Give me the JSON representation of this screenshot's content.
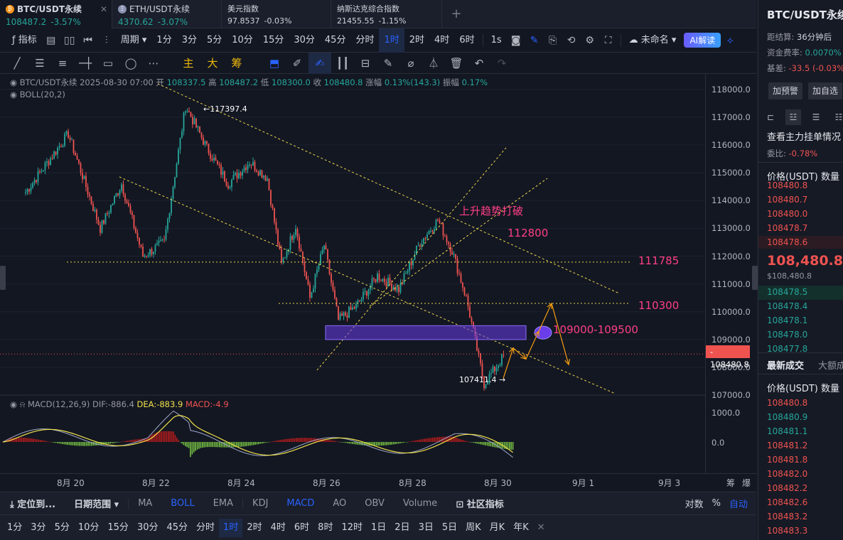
{
  "tabs": [
    {
      "name": "BTC/USDT永续",
      "price": "108487.2",
      "change": "-3.57%",
      "coin": "₿"
    },
    {
      "name": "ETH/USDT永续",
      "price": "4370.62",
      "change": "-3.07%",
      "coin": "Ξ"
    },
    {
      "name": "美元指数",
      "price": "97.8537",
      "change": "-0.03%"
    },
    {
      "name": "纳斯达克综合指数",
      "price": "21455.55",
      "change": "-1.15%"
    }
  ],
  "toolbar": {
    "indicator": "指标",
    "period": "周期",
    "intervals": [
      "1分",
      "3分",
      "5分",
      "10分",
      "15分",
      "30分",
      "45分",
      "分时",
      "1时",
      "2时",
      "4时",
      "6时"
    ],
    "active_interval": "1时",
    "seconds": "1s",
    "layout_name": "未命名",
    "ai": "AI解读"
  },
  "draw_toolbar": {
    "labels_cn": [
      "主",
      "大",
      "筹"
    ]
  },
  "legend": {
    "symbol": "BTC/USDT永续",
    "datetime": "2025-08-30 07:00",
    "open_label": "开",
    "open": "108337.5",
    "high_label": "高",
    "high": "108487.2",
    "low_label": "低",
    "low": "108300.0",
    "close_label": "收",
    "close": "108480.8",
    "change_label": "涨幅",
    "change": "0.13%(143.3)",
    "amp_label": "振幅",
    "amp": "0.17%",
    "boll": "BOLL(20,2)"
  },
  "macd_legend": {
    "name": "MACD(12,26,9)",
    "dif": "DIF:-886.4",
    "dea": "DEA:-883.9",
    "macd": "MACD:-4.9"
  },
  "annotations": {
    "breakdown": "上升趋势打破",
    "level_112800": "112800",
    "level_111785": "111785",
    "level_110300": "110300",
    "zone": "109000-109500",
    "high_marker": "←117397.4",
    "low_marker": "107411.4 →"
  },
  "price_axis": {
    "ticks": [
      "118000.0",
      "117000.0",
      "116000.0",
      "115000.0",
      "114000.0",
      "113000.0",
      "112000.0",
      "111000.0",
      "110000.0",
      "109000.0",
      "108000.0",
      "107000.0"
    ],
    "macd_ticks": [
      "1000.0",
      "0.0"
    ],
    "current_price": "108480.8",
    "current_price_marker": "-"
  },
  "date_axis": {
    "ticks": [
      "8月 20",
      "8月 22",
      "8月 24",
      "8月 26",
      "8月 28",
      "8月 30",
      "9月 1",
      "9月 3"
    ],
    "extra": [
      "筹",
      "爆"
    ]
  },
  "bottom_bar": {
    "locate": "定位到...",
    "date_range": "日期范围",
    "indicators": [
      "MA",
      "BOLL",
      "EMA",
      "KDJ",
      "MACD",
      "AO",
      "OBV",
      "Volume"
    ],
    "active_main": "BOLL",
    "active_sub": "MACD",
    "community": "社区指标",
    "log": "对数",
    "pct": "%",
    "auto": "自动"
  },
  "interval_bar": [
    "1分",
    "3分",
    "5分",
    "10分",
    "15分",
    "30分",
    "45分",
    "分时",
    "1时",
    "2时",
    "4时",
    "6时",
    "8时",
    "12时",
    "1日",
    "2日",
    "3日",
    "5日",
    "周K",
    "月K",
    "年K"
  ],
  "right_panel": {
    "title": "BTC/USDT永续",
    "settle_label": "距结算:",
    "settle": "36分钟后",
    "funding_label": "资金费率:",
    "funding": "0.0070%",
    "basis_label": "基差:",
    "basis": "-33.5 (-0.03%)",
    "alert_btn": "加预警",
    "watch_btn": "加自选",
    "orderbook_title": "查看主力挂单情况",
    "ratio_label": "委比:",
    "ratio": "-0.78%",
    "col_price": "价格(USDT)",
    "col_qty": "数量",
    "asks": [
      "108480.8",
      "108480.7",
      "108480.0",
      "108478.7",
      "108478.6"
    ],
    "mid_price": "108,480.8",
    "mid_sub": "$108,480.8",
    "bids": [
      "108478.5",
      "108478.4",
      "108478.1",
      "108478.0",
      "108477.8"
    ],
    "trades_title": "最新成交",
    "big_title": "大额成交",
    "trades": [
      {
        "p": "108480.8",
        "side": "sell"
      },
      {
        "p": "108480.9",
        "side": "buy"
      },
      {
        "p": "108481.1",
        "side": "buy"
      },
      {
        "p": "108481.2",
        "side": "sell"
      },
      {
        "p": "108481.8",
        "side": "sell"
      },
      {
        "p": "108482.0",
        "side": "sell"
      },
      {
        "p": "108482.2",
        "side": "sell"
      },
      {
        "p": "108482.6",
        "side": "sell"
      },
      {
        "p": "108483.2",
        "side": "sell"
      },
      {
        "p": "108483.3",
        "side": "sell"
      }
    ]
  },
  "colors": {
    "up": "#26a69a",
    "down": "#ef5350",
    "accent": "#2962ff",
    "annotation": "#ff3f86",
    "trendline": "#e8d44d",
    "zone": "#6a3de8",
    "arrow": "#f39c12"
  },
  "chart_data": {
    "type": "candlestick",
    "interval": "1h",
    "y_range": [
      106800,
      118300
    ],
    "key_points": [
      {
        "date": "8月 19",
        "price": 114300
      },
      {
        "date": "8月 20",
        "price": 116400
      },
      {
        "date": "8月 21",
        "price": 113000
      },
      {
        "date": "8月 21",
        "price": 114600
      },
      {
        "date": "8月 22",
        "price": 112000
      },
      {
        "date": "8月 22",
        "price": 112500
      },
      {
        "date": "8月 23",
        "price": 117397.4
      },
      {
        "date": "8月 23",
        "price": 115900
      },
      {
        "date": "8月 24",
        "price": 114600
      },
      {
        "date": "8月 24",
        "price": 115400
      },
      {
        "date": "8月 25",
        "price": 114800
      },
      {
        "date": "8月 25",
        "price": 111700
      },
      {
        "date": "8月 25",
        "price": 113100
      },
      {
        "date": "8月 26",
        "price": 110500
      },
      {
        "date": "8月 26",
        "price": 112400
      },
      {
        "date": "8月 26",
        "price": 109700
      },
      {
        "date": "8月 27",
        "price": 110200
      },
      {
        "date": "8月 27",
        "price": 111300
      },
      {
        "date": "8月 28",
        "price": 110800
      },
      {
        "date": "8月 28",
        "price": 112500
      },
      {
        "date": "8月 29",
        "price": 113300
      },
      {
        "date": "8月 29",
        "price": 112200
      },
      {
        "date": "8月 29",
        "price": 110500
      },
      {
        "date": "8月 30",
        "price": 107411.4
      },
      {
        "date": "8月 30",
        "price": 108480.8
      }
    ],
    "levels": [
      111785,
      110300,
      112800
    ],
    "zone": [
      109000,
      109500
    ]
  }
}
